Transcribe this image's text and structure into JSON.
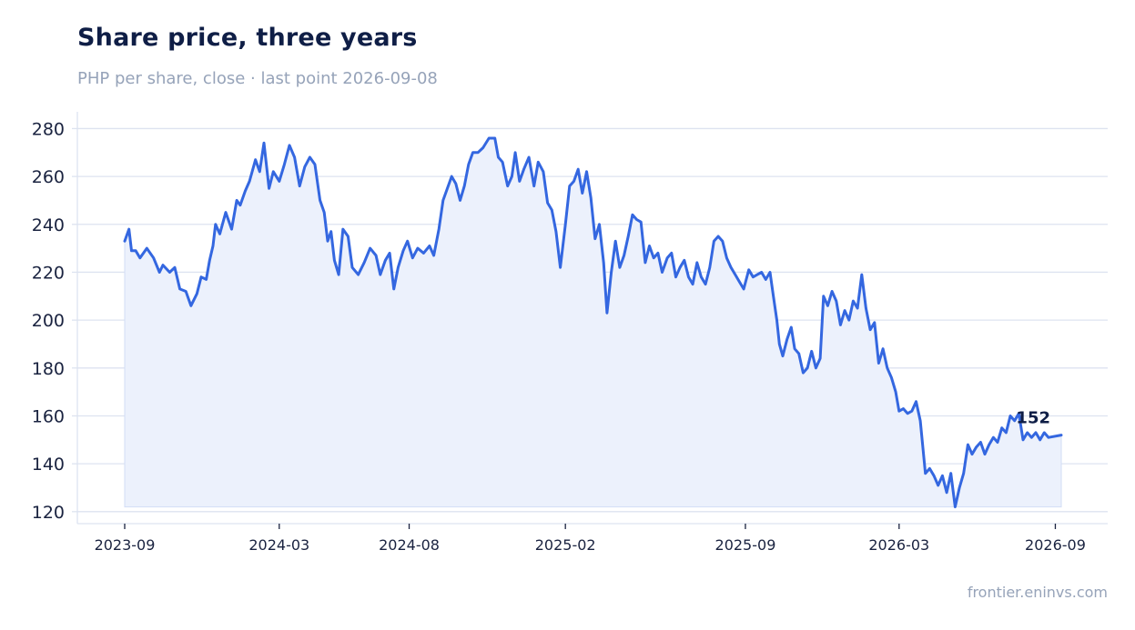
{
  "chart_data": {
    "type": "area",
    "title": "Share price, three years",
    "subtitle": "PHP per share, close · last point 2026-09-08",
    "source": "frontier.eninvs.com",
    "xlabel": "",
    "ylabel": "",
    "x_start": "2023-09-01",
    "x_end": "2026-09-08",
    "ylim": [
      115,
      287
    ],
    "y_ticks": [
      120,
      140,
      160,
      180,
      200,
      220,
      240,
      260,
      280
    ],
    "x_ticks": [
      {
        "date": "2023-09-01",
        "label": "2023-09"
      },
      {
        "date": "2024-03-01",
        "label": "2024-03"
      },
      {
        "date": "2024-08-01",
        "label": "2024-08"
      },
      {
        "date": "2025-02-01",
        "label": "2025-02"
      },
      {
        "date": "2025-09-01",
        "label": "2025-09"
      },
      {
        "date": "2026-03-01",
        "label": "2026-03"
      },
      {
        "date": "2026-09-01",
        "label": "2026-09"
      }
    ],
    "grid": true,
    "colors": {
      "line": "#3467e0",
      "fill": "#ecf1fc",
      "grid": "#dde3f0",
      "axis": "#dde3f0"
    },
    "end_label": "152",
    "series": [
      {
        "values": [
          [
            "2023-09-01",
            233
          ],
          [
            "2023-09-06",
            238
          ],
          [
            "2023-09-09",
            229
          ],
          [
            "2023-09-14",
            229
          ],
          [
            "2023-09-19",
            226
          ],
          [
            "2023-09-27",
            230
          ],
          [
            "2023-10-05",
            226
          ],
          [
            "2023-10-12",
            220
          ],
          [
            "2023-10-16",
            223
          ],
          [
            "2023-10-24",
            220
          ],
          [
            "2023-10-30",
            222
          ],
          [
            "2023-11-05",
            213
          ],
          [
            "2023-11-12",
            212
          ],
          [
            "2023-11-18",
            206
          ],
          [
            "2023-11-25",
            211
          ],
          [
            "2023-11-30",
            218
          ],
          [
            "2023-12-06",
            217
          ],
          [
            "2023-12-10",
            225
          ],
          [
            "2023-12-14",
            231
          ],
          [
            "2023-12-17",
            240
          ],
          [
            "2023-12-22",
            236
          ],
          [
            "2023-12-29",
            245
          ],
          [
            "2024-01-05",
            238
          ],
          [
            "2024-01-11",
            250
          ],
          [
            "2024-01-15",
            248
          ],
          [
            "2024-01-21",
            254
          ],
          [
            "2024-01-26",
            258
          ],
          [
            "2024-02-02",
            267
          ],
          [
            "2024-02-07",
            262
          ],
          [
            "2024-02-12",
            274
          ],
          [
            "2024-02-18",
            255
          ],
          [
            "2024-02-23",
            262
          ],
          [
            "2024-03-01",
            258
          ],
          [
            "2024-03-07",
            265
          ],
          [
            "2024-03-13",
            273
          ],
          [
            "2024-03-19",
            268
          ],
          [
            "2024-03-25",
            256
          ],
          [
            "2024-03-31",
            264
          ],
          [
            "2024-04-06",
            268
          ],
          [
            "2024-04-12",
            265
          ],
          [
            "2024-04-18",
            250
          ],
          [
            "2024-04-23",
            245
          ],
          [
            "2024-04-27",
            233
          ],
          [
            "2024-05-01",
            237
          ],
          [
            "2024-05-05",
            225
          ],
          [
            "2024-05-10",
            219
          ],
          [
            "2024-05-15",
            238
          ],
          [
            "2024-05-21",
            235
          ],
          [
            "2024-05-26",
            222
          ],
          [
            "2024-06-02",
            219
          ],
          [
            "2024-06-09",
            224
          ],
          [
            "2024-06-16",
            230
          ],
          [
            "2024-06-23",
            227
          ],
          [
            "2024-06-28",
            219
          ],
          [
            "2024-07-04",
            225
          ],
          [
            "2024-07-09",
            228
          ],
          [
            "2024-07-14",
            213
          ],
          [
            "2024-07-19",
            222
          ],
          [
            "2024-07-25",
            229
          ],
          [
            "2024-07-30",
            233
          ],
          [
            "2024-08-05",
            226
          ],
          [
            "2024-08-11",
            230
          ],
          [
            "2024-08-18",
            228
          ],
          [
            "2024-08-25",
            231
          ],
          [
            "2024-08-30",
            227
          ],
          [
            "2024-09-05",
            238
          ],
          [
            "2024-09-10",
            250
          ],
          [
            "2024-09-15",
            255
          ],
          [
            "2024-09-20",
            260
          ],
          [
            "2024-09-25",
            257
          ],
          [
            "2024-09-30",
            250
          ],
          [
            "2024-10-05",
            256
          ],
          [
            "2024-10-10",
            265
          ],
          [
            "2024-10-15",
            270
          ],
          [
            "2024-10-21",
            270
          ],
          [
            "2024-10-27",
            272
          ],
          [
            "2024-11-03",
            276
          ],
          [
            "2024-11-10",
            276
          ],
          [
            "2024-11-14",
            268
          ],
          [
            "2024-11-19",
            266
          ],
          [
            "2024-11-25",
            256
          ],
          [
            "2024-11-30",
            260
          ],
          [
            "2024-12-04",
            270
          ],
          [
            "2024-12-09",
            258
          ],
          [
            "2024-12-14",
            263
          ],
          [
            "2024-12-20",
            268
          ],
          [
            "2024-12-26",
            256
          ],
          [
            "2024-12-31",
            266
          ],
          [
            "2025-01-06",
            262
          ],
          [
            "2025-01-11",
            249
          ],
          [
            "2025-01-16",
            246
          ],
          [
            "2025-01-21",
            237
          ],
          [
            "2025-01-26",
            222
          ],
          [
            "2025-02-01",
            240
          ],
          [
            "2025-02-06",
            256
          ],
          [
            "2025-02-11",
            258
          ],
          [
            "2025-02-16",
            263
          ],
          [
            "2025-02-21",
            253
          ],
          [
            "2025-02-26",
            262
          ],
          [
            "2025-03-03",
            251
          ],
          [
            "2025-03-08",
            234
          ],
          [
            "2025-03-13",
            240
          ],
          [
            "2025-03-18",
            224
          ],
          [
            "2025-03-22",
            203
          ],
          [
            "2025-03-27",
            220
          ],
          [
            "2025-04-01",
            233
          ],
          [
            "2025-04-06",
            222
          ],
          [
            "2025-04-11",
            227
          ],
          [
            "2025-04-16",
            235
          ],
          [
            "2025-04-21",
            244
          ],
          [
            "2025-04-26",
            242
          ],
          [
            "2025-05-01",
            241
          ],
          [
            "2025-05-06",
            224
          ],
          [
            "2025-05-11",
            231
          ],
          [
            "2025-05-16",
            226
          ],
          [
            "2025-05-21",
            228
          ],
          [
            "2025-05-26",
            220
          ],
          [
            "2025-06-01",
            226
          ],
          [
            "2025-06-06",
            228
          ],
          [
            "2025-06-11",
            218
          ],
          [
            "2025-06-16",
            222
          ],
          [
            "2025-06-21",
            225
          ],
          [
            "2025-06-26",
            218
          ],
          [
            "2025-07-01",
            215
          ],
          [
            "2025-07-06",
            224
          ],
          [
            "2025-07-11",
            218
          ],
          [
            "2025-07-16",
            215
          ],
          [
            "2025-07-21",
            222
          ],
          [
            "2025-07-26",
            233
          ],
          [
            "2025-07-31",
            235
          ],
          [
            "2025-08-05",
            233
          ],
          [
            "2025-08-10",
            226
          ],
          [
            "2025-08-15",
            222
          ],
          [
            "2025-08-20",
            219
          ],
          [
            "2025-08-25",
            216
          ],
          [
            "2025-08-30",
            213
          ],
          [
            "2025-09-05",
            221
          ],
          [
            "2025-09-10",
            218
          ],
          [
            "2025-09-15",
            219
          ],
          [
            "2025-09-20",
            220
          ],
          [
            "2025-09-25",
            217
          ],
          [
            "2025-09-30",
            220
          ],
          [
            "2025-10-04",
            210
          ],
          [
            "2025-10-08",
            200
          ],
          [
            "2025-10-11",
            190
          ],
          [
            "2025-10-15",
            185
          ],
          [
            "2025-10-20",
            192
          ],
          [
            "2025-10-25",
            197
          ],
          [
            "2025-10-29",
            188
          ],
          [
            "2025-11-03",
            186
          ],
          [
            "2025-11-08",
            178
          ],
          [
            "2025-11-13",
            180
          ],
          [
            "2025-11-18",
            187
          ],
          [
            "2025-11-23",
            180
          ],
          [
            "2025-11-28",
            184
          ],
          [
            "2025-12-02",
            210
          ],
          [
            "2025-12-07",
            206
          ],
          [
            "2025-12-12",
            212
          ],
          [
            "2025-12-17",
            208
          ],
          [
            "2025-12-22",
            198
          ],
          [
            "2025-12-27",
            204
          ],
          [
            "2026-01-01",
            200
          ],
          [
            "2026-01-06",
            208
          ],
          [
            "2026-01-11",
            205
          ],
          [
            "2026-01-16",
            219
          ],
          [
            "2026-01-21",
            205
          ],
          [
            "2026-01-26",
            196
          ],
          [
            "2026-01-31",
            199
          ],
          [
            "2026-02-05",
            182
          ],
          [
            "2026-02-10",
            188
          ],
          [
            "2026-02-15",
            180
          ],
          [
            "2026-02-20",
            176
          ],
          [
            "2026-02-25",
            170
          ],
          [
            "2026-03-01",
            162
          ],
          [
            "2026-03-06",
            163
          ],
          [
            "2026-03-11",
            161
          ],
          [
            "2026-03-16",
            162
          ],
          [
            "2026-03-21",
            166
          ],
          [
            "2026-03-26",
            158
          ],
          [
            "2026-04-01",
            136
          ],
          [
            "2026-04-06",
            138
          ],
          [
            "2026-04-11",
            135
          ],
          [
            "2026-04-16",
            131
          ],
          [
            "2026-04-21",
            135
          ],
          [
            "2026-04-26",
            128
          ],
          [
            "2026-05-01",
            136
          ],
          [
            "2026-05-06",
            122
          ],
          [
            "2026-05-11",
            130
          ],
          [
            "2026-05-16",
            136
          ],
          [
            "2026-05-21",
            148
          ],
          [
            "2026-05-26",
            144
          ],
          [
            "2026-05-31",
            147
          ],
          [
            "2026-06-05",
            149
          ],
          [
            "2026-06-10",
            144
          ],
          [
            "2026-06-15",
            148
          ],
          [
            "2026-06-20",
            151
          ],
          [
            "2026-06-25",
            149
          ],
          [
            "2026-06-30",
            155
          ],
          [
            "2026-07-05",
            153
          ],
          [
            "2026-07-10",
            160
          ],
          [
            "2026-07-15",
            158
          ],
          [
            "2026-07-20",
            161
          ],
          [
            "2026-07-25",
            150
          ],
          [
            "2026-07-30",
            153
          ],
          [
            "2026-08-04",
            151
          ],
          [
            "2026-08-09",
            153
          ],
          [
            "2026-08-14",
            150
          ],
          [
            "2026-08-19",
            153
          ],
          [
            "2026-08-24",
            151
          ],
          [
            "2026-09-08",
            152
          ]
        ]
      }
    ]
  }
}
